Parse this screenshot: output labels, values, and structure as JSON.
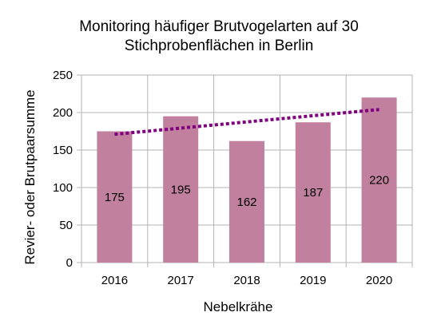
{
  "chart_data": {
    "type": "bar",
    "title_lines": [
      "Monitoring häufiger Brutvogelarten auf 30",
      "Stichprobenflächen in Berlin"
    ],
    "xlabel": "Nebelkrähe",
    "ylabel": "Revier- oder Brutpaarsumme",
    "categories": [
      "2016",
      "2017",
      "2018",
      "2019",
      "2020"
    ],
    "values": [
      175,
      195,
      162,
      187,
      220
    ],
    "data_labels": [
      "175",
      "195",
      "162",
      "187",
      "220"
    ],
    "ylim": [
      0,
      250
    ],
    "yticks": [
      0,
      50,
      100,
      150,
      200,
      250
    ],
    "ytick_labels": [
      "0",
      "50",
      "100",
      "150",
      "200",
      "250"
    ],
    "grid": true,
    "bar_color": "#c0809e",
    "trendline": {
      "type": "linear",
      "style": "dotted",
      "color": "#800080",
      "start_value": 171,
      "end_value": 204
    }
  }
}
